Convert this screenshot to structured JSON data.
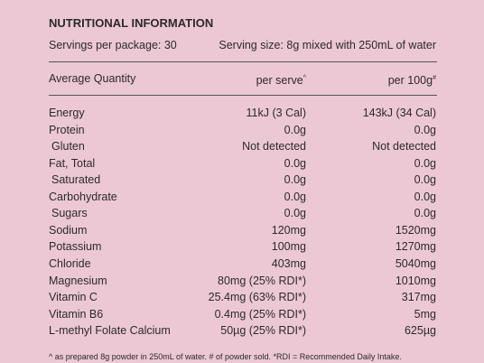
{
  "header": {
    "title": "NUTRITIONAL INFORMATION",
    "servings": "Servings per package: 30",
    "serving_size": "Serving size: 8g mixed with 250mL of water"
  },
  "table": {
    "columns": [
      {
        "text": "Average Quantity"
      },
      {
        "text": "per serve",
        "sup": "^"
      },
      {
        "text": "per 100g",
        "sup": "#"
      }
    ],
    "rows": [
      {
        "label": "Energy",
        "per_serve": "11kJ (3 Cal)",
        "per_100g": "143kJ (34 Cal)"
      },
      {
        "label": "Protein",
        "per_serve": "0.0g",
        "per_100g": "0.0g"
      },
      {
        "label": "Gluten",
        "per_serve": "Not detected",
        "per_100g": "Not detected",
        "indent": true
      },
      {
        "label": "Fat, Total",
        "per_serve": "0.0g",
        "per_100g": "0.0g"
      },
      {
        "label": "Saturated",
        "per_serve": "0.0g",
        "per_100g": "0.0g",
        "indent": true
      },
      {
        "label": "Carbohydrate",
        "per_serve": "0.0g",
        "per_100g": "0.0g"
      },
      {
        "label": "Sugars",
        "per_serve": "0.0g",
        "per_100g": "0.0g",
        "indent": true
      },
      {
        "label": "Sodium",
        "per_serve": "120mg",
        "per_100g": "1520mg"
      },
      {
        "label": "Potassium",
        "per_serve": "100mg",
        "per_100g": "1270mg"
      },
      {
        "label": "Chloride",
        "per_serve": "403mg",
        "per_100g": "5040mg"
      },
      {
        "label": "Magnesium",
        "per_serve": "80mg (25% RDI*)",
        "per_100g": "1010mg"
      },
      {
        "label": "Vitamin C",
        "per_serve": "25.4mg (63% RDI*)",
        "per_100g": "317mg"
      },
      {
        "label": "Vitamin B6",
        "per_serve": "0.4mg (25% RDI*)",
        "per_100g": "5mg"
      },
      {
        "label": "L-methyl Folate Calcium",
        "per_serve": "50µg (25% RDI*)",
        "per_100g": "625µg"
      }
    ]
  },
  "footnote": "^ as prepared 8g powder in 250mL of water. # of powder sold. *RDI = Recommended Daily Intake."
}
